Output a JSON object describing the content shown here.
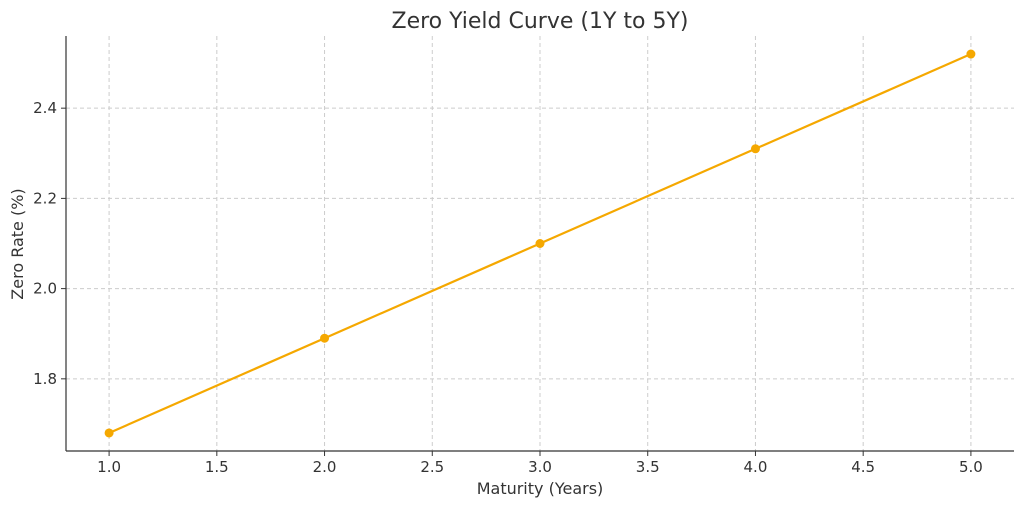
{
  "chart_data": {
    "type": "line",
    "title": "Zero Yield Curve (1Y to 5Y)",
    "xlabel": "Maturity (Years)",
    "ylabel": "Zero Rate (%)",
    "x": [
      1.0,
      2.0,
      3.0,
      4.0,
      5.0
    ],
    "series": [
      {
        "values": [
          1.68,
          1.89,
          2.1,
          2.31,
          2.52
        ],
        "color": "#F5A800",
        "marker": "circle"
      }
    ],
    "xlim": [
      0.8,
      5.2
    ],
    "ylim": [
      1.64,
      2.56
    ],
    "xticks": [
      1.0,
      1.5,
      2.0,
      2.5,
      3.0,
      3.5,
      4.0,
      4.5,
      5.0
    ],
    "xtick_labels": [
      "1.0",
      "1.5",
      "2.0",
      "2.5",
      "3.0",
      "3.5",
      "4.0",
      "4.5",
      "5.0"
    ],
    "yticks": [
      1.8,
      2.0,
      2.2,
      2.4
    ],
    "ytick_labels": [
      "1.8",
      "2.0",
      "2.2",
      "2.4"
    ],
    "grid": true,
    "legend": "none"
  }
}
